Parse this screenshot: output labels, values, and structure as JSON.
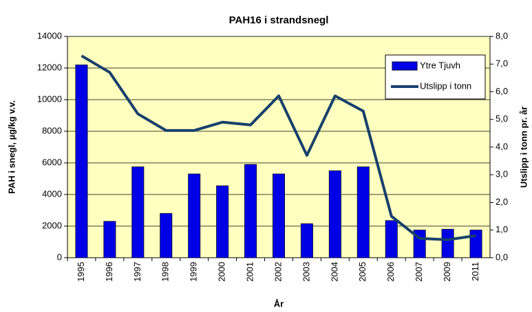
{
  "chart_data": {
    "type": "bar",
    "title": "PAH16 i strandsnegl",
    "x_label": "År",
    "y_label": "PAH i snegl, µg/kg v.v.",
    "y2_label": "Utslipp i tonn pr. år",
    "categories": [
      "1995",
      "1996",
      "1997",
      "1998",
      "1999",
      "2000",
      "2001",
      "2002",
      "2003",
      "2004",
      "2005",
      "2006",
      "2007",
      "2009",
      "2011"
    ],
    "series": [
      {
        "name": "Ytre Tjuvh",
        "type": "bar",
        "color": "#0000e6",
        "values": [
          12200,
          2300,
          5750,
          2800,
          5300,
          4550,
          5900,
          5300,
          2150,
          5500,
          5750,
          2350,
          1750,
          1800,
          1750
        ]
      },
      {
        "name": "Utslipp i tonn",
        "type": "line",
        "axis": "y2",
        "color": "#17406d",
        "values": [
          7.3,
          6.7,
          5.2,
          4.6,
          4.6,
          4.9,
          4.8,
          5.85,
          3.7,
          5.85,
          5.3,
          1.5,
          0.7,
          0.65,
          0.8
        ]
      }
    ],
    "ylim": [
      0,
      14000
    ],
    "yticks": [
      0,
      2000,
      4000,
      6000,
      8000,
      10000,
      12000,
      14000
    ],
    "y2lim": [
      0,
      8
    ],
    "y2ticks": [
      {
        "value": 0,
        "label": "0,0"
      },
      {
        "value": 1,
        "label": "1,0"
      },
      {
        "value": 2,
        "label": "2,0"
      },
      {
        "value": 3,
        "label": "3,0"
      },
      {
        "value": 4,
        "label": "4,0"
      },
      {
        "value": 5,
        "label": "5,0"
      },
      {
        "value": 6,
        "label": "6,0"
      },
      {
        "value": 7,
        "label": "7,0"
      },
      {
        "value": 8,
        "label": "8,0"
      }
    ],
    "plot_background": "#ffffc0",
    "legend": "upper right"
  }
}
